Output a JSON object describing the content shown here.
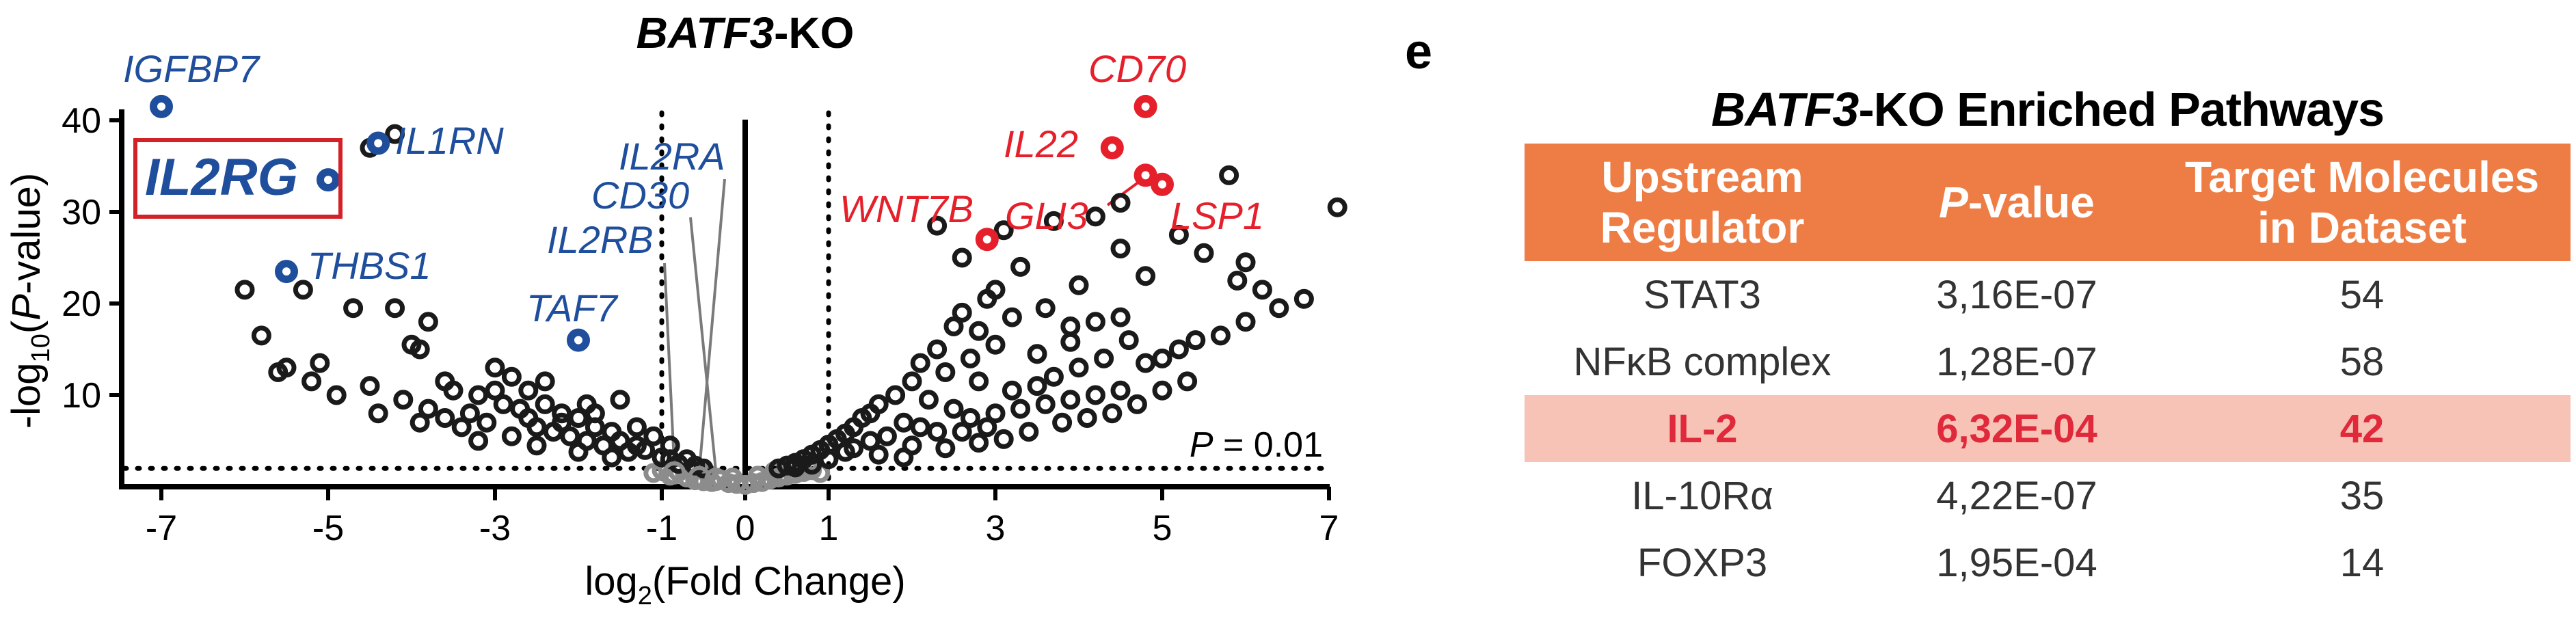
{
  "chart_data": {
    "type": "scatter",
    "title_gene": "BATF3",
    "title_suffix": "-KO",
    "xlabel_main": "log",
    "xlabel_sub": "2",
    "xlabel_rest": "(Fold Change)",
    "ylabel_prefix": "-log",
    "ylabel_sub": "10",
    "ylabel_open": "(",
    "ylabel_p": "P",
    "ylabel_close": "-value)",
    "xlim": [
      -7.6,
      7.5
    ],
    "ylim": [
      0,
      44
    ],
    "x_ticks": [
      -7,
      -5,
      -3,
      -1,
      0,
      1,
      3,
      5,
      7
    ],
    "y_ticks": [
      10,
      20,
      30,
      40
    ],
    "fc_threshold_lines": [
      -1,
      1
    ],
    "p_threshold_y": 2,
    "p_threshold_p": "P",
    "p_threshold_value": " = 0.01",
    "highlighted_box_gene": "IL2RG",
    "colors": {
      "down": "#1f4e9c",
      "up": "#e5202b",
      "neutral": "#1a1a1a",
      "nonsig": "#8c8c8c",
      "box": "#d42128"
    },
    "labeled_points": [
      {
        "gene": "IGFBP7",
        "x": -7.0,
        "y": 41.5,
        "group": "down"
      },
      {
        "gene": "IL2RG",
        "x": -5.0,
        "y": 33.5,
        "group": "down"
      },
      {
        "gene": "IL1RN",
        "x": -4.4,
        "y": 37.5,
        "group": "down"
      },
      {
        "gene": "THBS1",
        "x": -5.5,
        "y": 23.5,
        "group": "down"
      },
      {
        "gene": "TAF7",
        "x": -2.0,
        "y": 16.0,
        "group": "down"
      },
      {
        "gene": "IL2RA",
        "x": -0.55,
        "y": 1.0,
        "group": "nonsig"
      },
      {
        "gene": "CD30",
        "x": -0.35,
        "y": 0.8,
        "group": "nonsig"
      },
      {
        "gene": "IL2RB",
        "x": -0.85,
        "y": 1.5,
        "group": "nonsig"
      },
      {
        "gene": "CD70",
        "x": 4.8,
        "y": 41.5,
        "group": "up"
      },
      {
        "gene": "IL22",
        "x": 4.4,
        "y": 37.0,
        "group": "up"
      },
      {
        "gene": "GLI3",
        "x": 4.8,
        "y": 34.0,
        "group": "up"
      },
      {
        "gene": "LSP1",
        "x": 5.0,
        "y": 33.0,
        "group": "up"
      },
      {
        "gene": "WNT7B",
        "x": 2.9,
        "y": 27.0,
        "group": "up"
      }
    ],
    "other_points_left": [
      [
        -4.5,
        37
      ],
      [
        -4.2,
        38.5
      ],
      [
        -6.0,
        21.5
      ],
      [
        -5.8,
        16.5
      ],
      [
        -5.3,
        21.5
      ],
      [
        -4.7,
        19.5
      ],
      [
        -4.2,
        19.5
      ],
      [
        -3.8,
        18.0
      ],
      [
        -4.0,
        15.5
      ],
      [
        -3.9,
        15.0
      ],
      [
        -3.6,
        11.5
      ],
      [
        -3.5,
        10.5
      ],
      [
        -3.2,
        10.0
      ],
      [
        -4.5,
        11.0
      ],
      [
        -4.9,
        10.0
      ],
      [
        -5.2,
        11.5
      ],
      [
        -5.6,
        12.5
      ],
      [
        -5.1,
        13.5
      ],
      [
        -3.0,
        13.0
      ],
      [
        -2.8,
        12.0
      ],
      [
        -2.6,
        10.5
      ],
      [
        -2.9,
        9.0
      ],
      [
        -2.7,
        8.5
      ],
      [
        -2.4,
        9.0
      ],
      [
        -2.2,
        8.0
      ],
      [
        -2.0,
        7.5
      ],
      [
        -1.8,
        6.5
      ],
      [
        -1.6,
        6.0
      ],
      [
        -1.5,
        5.0
      ],
      [
        -1.3,
        4.5
      ],
      [
        -1.2,
        4.0
      ],
      [
        -1.0,
        3.2
      ],
      [
        -0.9,
        3.0
      ],
      [
        -0.8,
        2.5
      ],
      [
        -1.5,
        9.5
      ],
      [
        -1.9,
        9.0
      ],
      [
        -2.4,
        11.5
      ],
      [
        -3.3,
        8.0
      ],
      [
        -3.1,
        7.0
      ],
      [
        -2.5,
        6.5
      ],
      [
        -2.3,
        6.0
      ],
      [
        -2.1,
        5.5
      ],
      [
        -1.9,
        5.0
      ],
      [
        -1.7,
        4.5
      ],
      [
        -1.4,
        3.8
      ],
      [
        -3.4,
        6.5
      ],
      [
        -3.6,
        7.5
      ],
      [
        -3.8,
        8.5
      ],
      [
        -3.0,
        10.5
      ],
      [
        -2.6,
        7.5
      ],
      [
        -2.2,
        7.0
      ],
      [
        -1.8,
        8.0
      ],
      [
        -1.3,
        6.5
      ],
      [
        -1.1,
        5.5
      ],
      [
        -0.9,
        4.5
      ],
      [
        -0.7,
        3.0
      ],
      [
        -0.6,
        2.3
      ],
      [
        -0.5,
        2.0
      ],
      [
        -2.8,
        5.5
      ],
      [
        -2.5,
        4.5
      ],
      [
        -2.0,
        3.8
      ],
      [
        -1.6,
        3.2
      ],
      [
        -3.2,
        5.0
      ],
      [
        -4.1,
        9.5
      ],
      [
        -4.4,
        8.0
      ],
      [
        -3.9,
        7.0
      ],
      [
        -5.5,
        13.0
      ]
    ],
    "other_points_right": [
      [
        7.1,
        30.5
      ],
      [
        5.8,
        34.0
      ],
      [
        4.5,
        31.0
      ],
      [
        4.2,
        29.5
      ],
      [
        3.7,
        29.0
      ],
      [
        3.1,
        28.0
      ],
      [
        2.3,
        28.5
      ],
      [
        2.6,
        25.0
      ],
      [
        3.3,
        24.0
      ],
      [
        4.5,
        26.0
      ],
      [
        5.2,
        27.5
      ],
      [
        5.5,
        25.5
      ],
      [
        6.0,
        24.5
      ],
      [
        4.8,
        23.0
      ],
      [
        4.0,
        22.0
      ],
      [
        3.0,
        21.5
      ],
      [
        2.6,
        19.0
      ],
      [
        2.9,
        20.5
      ],
      [
        2.5,
        17.5
      ],
      [
        2.8,
        17.0
      ],
      [
        3.2,
        18.5
      ],
      [
        3.6,
        19.5
      ],
      [
        3.9,
        17.5
      ],
      [
        4.2,
        18.0
      ],
      [
        4.5,
        18.5
      ],
      [
        6.7,
        20.5
      ],
      [
        6.4,
        19.5
      ],
      [
        6.0,
        18.0
      ],
      [
        5.7,
        16.5
      ],
      [
        5.4,
        16.0
      ],
      [
        5.2,
        15.0
      ],
      [
        5.0,
        14.0
      ],
      [
        4.8,
        13.5
      ],
      [
        4.3,
        14.0
      ],
      [
        4.0,
        13.0
      ],
      [
        3.7,
        12.0
      ],
      [
        3.5,
        11.0
      ],
      [
        3.2,
        10.5
      ],
      [
        2.8,
        11.5
      ],
      [
        2.4,
        12.5
      ],
      [
        2.1,
        13.5
      ],
      [
        2.0,
        11.5
      ],
      [
        1.8,
        10.0
      ],
      [
        1.6,
        9.0
      ],
      [
        1.5,
        8.0
      ],
      [
        1.4,
        7.5
      ],
      [
        1.3,
        6.5
      ],
      [
        1.2,
        5.8
      ],
      [
        1.1,
        5.2
      ],
      [
        1.0,
        4.6
      ],
      [
        0.9,
        4.0
      ],
      [
        0.8,
        3.5
      ],
      [
        0.7,
        3.0
      ],
      [
        0.6,
        2.6
      ],
      [
        0.5,
        2.3
      ],
      [
        0.4,
        2.0
      ],
      [
        2.2,
        9.5
      ],
      [
        2.5,
        8.5
      ],
      [
        2.7,
        7.5
      ],
      [
        3.0,
        8.0
      ],
      [
        3.3,
        8.5
      ],
      [
        3.6,
        9.0
      ],
      [
        3.9,
        9.5
      ],
      [
        4.2,
        10.0
      ],
      [
        4.5,
        10.5
      ],
      [
        1.9,
        7.0
      ],
      [
        2.1,
        6.5
      ],
      [
        2.3,
        6.0
      ],
      [
        2.6,
        6.0
      ],
      [
        2.9,
        6.5
      ],
      [
        1.7,
        5.5
      ],
      [
        1.5,
        5.0
      ],
      [
        2.0,
        4.5
      ],
      [
        2.4,
        4.2
      ],
      [
        2.8,
        4.8
      ],
      [
        3.1,
        5.2
      ],
      [
        3.4,
        6.0
      ],
      [
        1.2,
        3.8
      ],
      [
        1.6,
        3.5
      ],
      [
        1.9,
        3.2
      ],
      [
        3.8,
        7.0
      ],
      [
        4.1,
        7.5
      ],
      [
        4.4,
        8.0
      ],
      [
        4.7,
        9.0
      ],
      [
        5.0,
        10.5
      ],
      [
        5.3,
        11.5
      ],
      [
        3.5,
        14.5
      ],
      [
        3.0,
        15.5
      ],
      [
        2.7,
        14.0
      ],
      [
        4.6,
        16.0
      ],
      [
        5.9,
        22.5
      ],
      [
        6.2,
        21.5
      ],
      [
        1.0,
        3.0
      ],
      [
        0.8,
        2.4
      ],
      [
        0.6,
        2.1
      ],
      [
        1.3,
        4.2
      ],
      [
        3.9,
        15.8
      ],
      [
        2.3,
        15.0
      ]
    ],
    "nonsig_points": [
      [
        -0.5,
        0.6
      ],
      [
        -0.4,
        0.5
      ],
      [
        -0.3,
        0.8
      ],
      [
        -0.2,
        0.4
      ],
      [
        -0.1,
        0.3
      ],
      [
        0.0,
        0.2
      ],
      [
        -0.6,
        0.7
      ],
      [
        -0.7,
        1.0
      ],
      [
        -0.9,
        1.2
      ],
      [
        0.1,
        0.4
      ],
      [
        0.2,
        0.5
      ],
      [
        0.3,
        0.8
      ],
      [
        0.4,
        1.0
      ],
      [
        0.5,
        1.2
      ],
      [
        0.6,
        1.4
      ],
      [
        0.7,
        1.6
      ],
      [
        0.8,
        1.8
      ],
      [
        -1.1,
        1.5
      ],
      [
        -1.0,
        1.8
      ],
      [
        -0.8,
        1.6
      ],
      [
        0.9,
        1.5
      ],
      [
        0.35,
        1.7
      ],
      [
        -0.45,
        1.4
      ],
      [
        -0.15,
        1.0
      ],
      [
        0.15,
        1.2
      ]
    ]
  },
  "panel_label": "e",
  "table": {
    "title_gene": "BATF3",
    "title_rest": "-KO Enriched Pathways",
    "header_regulator_line1": "Upstream",
    "header_regulator_line2": "Regulator",
    "header_p_italic": "P",
    "header_p_rest": "-value",
    "header_target_line1": "Target Molecules",
    "header_target_line2": "in Dataset",
    "rows": [
      {
        "regulator": "STAT3",
        "pvalue": "3,16E-07",
        "molecules": "54"
      },
      {
        "regulator": "NFκB complex",
        "pvalue": "1,28E-07",
        "molecules": "58"
      },
      {
        "regulator": "IL-2",
        "pvalue": "6,32E-04",
        "molecules": "42"
      },
      {
        "regulator": "IL-10Rα",
        "pvalue": "4,22E-07",
        "molecules": "35"
      },
      {
        "regulator": "FOXP3",
        "pvalue": "1,95E-04",
        "molecules": "14"
      }
    ]
  }
}
